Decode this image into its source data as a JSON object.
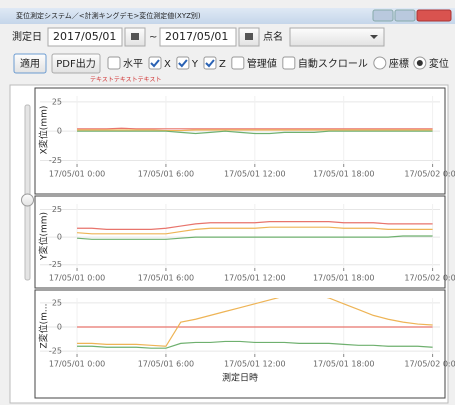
{
  "window": {
    "title": "変位測定システム／<計測キングデモ>変位測定値(XYZ別)"
  },
  "filter": {
    "date_label": "測定日",
    "date_from": "2017/05/01",
    "separator": "~",
    "date_to": "2017/05/01",
    "point_label": "点名"
  },
  "toolbar": {
    "apply": "適用",
    "pdf": "PDF出力",
    "note": "テキストテキストテキスト",
    "options": [
      {
        "label": "水平",
        "checked": false
      },
      {
        "label": "X",
        "checked": true
      },
      {
        "label": "Y",
        "checked": true
      },
      {
        "label": "Z",
        "checked": true
      },
      {
        "label": "管理値",
        "checked": false
      },
      {
        "label": "自動スクロール",
        "checked": false
      }
    ],
    "modes": [
      {
        "label": "座標",
        "selected": false
      },
      {
        "label": "変位",
        "selected": true
      }
    ]
  },
  "chart_data": [
    {
      "type": "line",
      "y_label": "X変位(mm)",
      "x": [
        0,
        1,
        2,
        3,
        4,
        5,
        6,
        7,
        8,
        9,
        10,
        11,
        12,
        13,
        14,
        15,
        16,
        17,
        18,
        19,
        20,
        21,
        22,
        23,
        24
      ],
      "xlim": [
        -2.5,
        24.5
      ],
      "xticks": [
        {
          "value": 0,
          "label": "17/05/01 0:00"
        },
        {
          "value": 6,
          "label": "17/05/01 6:00"
        },
        {
          "value": 12,
          "label": "17/05/01 12:00"
        },
        {
          "value": 18,
          "label": "17/05/01 18:00"
        },
        {
          "value": 24,
          "label": "17/05/02 0:00"
        }
      ],
      "ylim": [
        -28,
        30
      ],
      "yticks": [
        -25,
        0,
        25
      ],
      "grid": true,
      "series": [
        {
          "color": "#e8746c",
          "values": [
            2,
            2,
            2,
            2.5,
            2,
            2,
            2,
            2,
            2,
            2,
            2,
            2,
            2,
            2,
            2,
            2,
            2,
            2,
            2,
            2,
            2,
            2,
            2,
            2,
            2
          ]
        },
        {
          "color": "#eeb456",
          "values": [
            1,
            1,
            1,
            1,
            1,
            1,
            0.5,
            0.5,
            1,
            1,
            1,
            1,
            1,
            1,
            1,
            1,
            1,
            1,
            1,
            1,
            1,
            1,
            1,
            1,
            1
          ]
        },
        {
          "color": "#6fb06f",
          "values": [
            0,
            0,
            0,
            0,
            0,
            0,
            0,
            -1,
            -2,
            -1,
            0,
            -1,
            -2,
            -2,
            -1,
            -1,
            -1,
            0,
            0,
            0,
            0,
            0,
            0,
            0,
            0
          ]
        }
      ]
    },
    {
      "type": "line",
      "y_label": "Y変位(mm)",
      "x": [
        0,
        1,
        2,
        3,
        4,
        5,
        6,
        7,
        8,
        9,
        10,
        11,
        12,
        13,
        14,
        15,
        16,
        17,
        18,
        19,
        20,
        21,
        22,
        23,
        24
      ],
      "xlim": [
        -2.5,
        24.5
      ],
      "xticks": [
        {
          "value": 0,
          "label": "17/05/01 0:00"
        },
        {
          "value": 6,
          "label": "17/05/01 6:00"
        },
        {
          "value": 12,
          "label": "17/05/01 12:00"
        },
        {
          "value": 18,
          "label": "17/05/01 18:00"
        },
        {
          "value": 24,
          "label": "17/05/02 0:00"
        }
      ],
      "ylim": [
        -28,
        30
      ],
      "yticks": [
        -25,
        0,
        25
      ],
      "grid": true,
      "series": [
        {
          "color": "#e8746c",
          "values": [
            8,
            8,
            7,
            7,
            7,
            7,
            8,
            10,
            12,
            13,
            13,
            13,
            13,
            14,
            14,
            14,
            14,
            14,
            13,
            13,
            13,
            12,
            12,
            12,
            12
          ]
        },
        {
          "color": "#eeb456",
          "values": [
            4,
            3,
            3,
            3,
            3,
            3,
            3,
            5,
            7,
            8,
            8,
            8,
            8,
            9,
            9,
            9,
            9,
            9,
            8,
            8,
            8,
            7,
            7,
            7,
            7
          ]
        },
        {
          "color": "#6fb06f",
          "values": [
            -1,
            -2,
            -2,
            -2,
            -2,
            -2,
            -2,
            -1,
            0,
            0,
            0,
            0,
            0,
            0,
            0,
            0,
            0,
            0,
            0,
            0,
            0,
            0,
            1,
            1,
            1
          ]
        }
      ]
    },
    {
      "type": "line",
      "y_label": "Z変位(m...",
      "x_label": "測定日時",
      "x": [
        0,
        1,
        2,
        3,
        4,
        5,
        6,
        7,
        8,
        9,
        10,
        11,
        12,
        13,
        14,
        15,
        16,
        17,
        18,
        19,
        20,
        21,
        22,
        23,
        24
      ],
      "xlim": [
        -2.5,
        24.5
      ],
      "xticks": [
        {
          "value": 0,
          "label": "17/05/01 0:00"
        },
        {
          "value": 6,
          "label": "17/05/01 6:00"
        },
        {
          "value": 12,
          "label": "17/05/01 12:00"
        },
        {
          "value": 18,
          "label": "17/05/01 18:00"
        },
        {
          "value": 24,
          "label": "17/05/02 0:00"
        }
      ],
      "ylim": [
        -28,
        30
      ],
      "yticks": [
        -25,
        0,
        25
      ],
      "grid": true,
      "series": [
        {
          "color": "#e8746c",
          "values": [
            0,
            0,
            0,
            0,
            0,
            0,
            0,
            0,
            0,
            0,
            0,
            0,
            0,
            0,
            0,
            0,
            0,
            0,
            0,
            0,
            0,
            0,
            0,
            0,
            0
          ]
        },
        {
          "color": "#eeb456",
          "values": [
            -17,
            -17,
            -18,
            -18,
            -18,
            -19,
            -20,
            5,
            8,
            12,
            16,
            20,
            24,
            28,
            32,
            34,
            34,
            30,
            24,
            18,
            12,
            8,
            5,
            3,
            2
          ]
        },
        {
          "color": "#6fb06f",
          "values": [
            -20,
            -20,
            -21,
            -21,
            -21,
            -22,
            -22,
            -17,
            -16,
            -16,
            -15,
            -15,
            -16,
            -16,
            -16,
            -17,
            -17,
            -17,
            -18,
            -19,
            -19,
            -20,
            -20,
            -20,
            -21
          ]
        }
      ]
    }
  ]
}
